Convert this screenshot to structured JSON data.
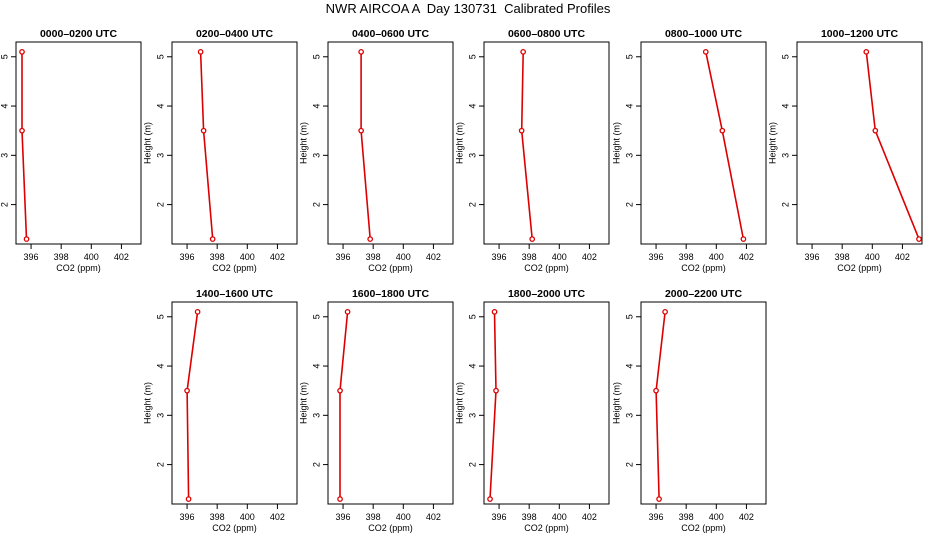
{
  "title": "NWR AIRCOA A  Day 130731  Calibrated Profiles",
  "chart_data": {
    "type": "line",
    "xlabel": "CO2 (ppm)",
    "ylabel": "Height (m)",
    "xlim": [
      395,
      403.3
    ],
    "ylim": [
      1.2,
      5.3
    ],
    "x_ticks": [
      "396",
      "398",
      "400",
      "402"
    ],
    "y_ticks": [
      "2",
      "3",
      "4",
      "5"
    ],
    "grid": false,
    "line_color": "#dd0000",
    "panels": [
      {
        "title": "0000–0200 UTC",
        "points": [
          [
            395.4,
            5.1
          ],
          [
            395.4,
            3.5
          ],
          [
            395.7,
            1.3
          ]
        ]
      },
      {
        "title": "0200–0400 UTC",
        "points": [
          [
            396.9,
            5.1
          ],
          [
            397.1,
            3.5
          ],
          [
            397.7,
            1.3
          ]
        ]
      },
      {
        "title": "0400–0600 UTC",
        "points": [
          [
            397.2,
            5.1
          ],
          [
            397.2,
            3.5
          ],
          [
            397.8,
            1.3
          ]
        ]
      },
      {
        "title": "0600–0800 UTC",
        "points": [
          [
            397.6,
            5.1
          ],
          [
            397.5,
            3.5
          ],
          [
            398.2,
            1.3
          ]
        ]
      },
      {
        "title": "0800–1000 UTC",
        "points": [
          [
            399.3,
            5.1
          ],
          [
            400.4,
            3.5
          ],
          [
            401.8,
            1.3
          ]
        ]
      },
      {
        "title": "1000–1200 UTC",
        "points": [
          [
            399.6,
            5.1
          ],
          [
            400.2,
            3.5
          ],
          [
            403.1,
            1.3
          ]
        ]
      },
      {
        "title": "1400–1600 UTC",
        "points": [
          [
            396.7,
            5.1
          ],
          [
            396.0,
            3.5
          ],
          [
            396.1,
            1.3
          ]
        ]
      },
      {
        "title": "1600–1800 UTC",
        "points": [
          [
            396.3,
            5.1
          ],
          [
            395.8,
            3.5
          ],
          [
            395.8,
            1.3
          ]
        ]
      },
      {
        "title": "1800–2000 UTC",
        "points": [
          [
            395.7,
            5.1
          ],
          [
            395.8,
            3.5
          ],
          [
            395.4,
            1.3
          ]
        ]
      },
      {
        "title": "2000–2200 UTC",
        "points": [
          [
            396.6,
            5.1
          ],
          [
            396.0,
            3.5
          ],
          [
            396.2,
            1.3
          ]
        ]
      }
    ]
  }
}
